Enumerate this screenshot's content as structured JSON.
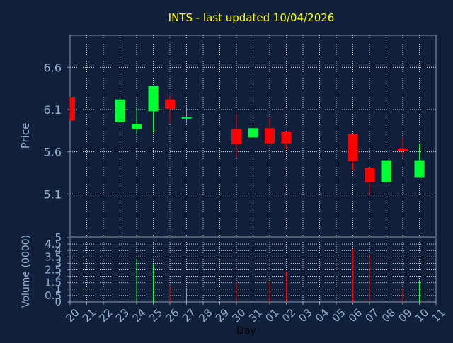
{
  "colors": {
    "background": "#10203a",
    "axis": "#8a9aaa",
    "grid": "#c8c8c8",
    "title": "#ffff00",
    "label": "#8fb0d0",
    "tick": "#8fb0d0",
    "xlabel": "#000000",
    "up": "#00ff33",
    "down": "#ff0000"
  },
  "chart_data": [
    {
      "type": "candlestick",
      "title": "INTS - last updated 10/04/2026",
      "xlabel": "Day",
      "ylabel": "Price",
      "ylim": [
        4.6,
        6.98
      ],
      "yticks": [
        "6.6",
        "6.1",
        "5.6",
        "5.1"
      ],
      "ytick_values": [
        6.6,
        6.1,
        5.6,
        5.1
      ],
      "categories": [
        "20",
        "21",
        "22",
        "23",
        "24",
        "25",
        "26",
        "27",
        "28",
        "29",
        "30",
        "31",
        "01",
        "02",
        "03",
        "04",
        "05",
        "06",
        "07",
        "08",
        "09",
        "10",
        "11"
      ],
      "grid": true,
      "candles": [
        {
          "day": "20",
          "open": 6.25,
          "high": 6.25,
          "low": 5.97,
          "close": 5.97
        },
        {
          "day": "23",
          "open": 5.95,
          "high": 6.22,
          "low": 5.95,
          "close": 6.22
        },
        {
          "day": "24",
          "open": 5.87,
          "high": 6.12,
          "low": 5.82,
          "close": 5.93
        },
        {
          "day": "25",
          "open": 6.08,
          "high": 6.38,
          "low": 5.83,
          "close": 6.38
        },
        {
          "day": "26",
          "open": 6.22,
          "high": 6.26,
          "low": 5.93,
          "close": 6.11
        },
        {
          "day": "27",
          "open": 6.01,
          "high": 6.15,
          "low": 5.95,
          "close": 6.01
        },
        {
          "day": "30",
          "open": 5.87,
          "high": 6.05,
          "low": 5.54,
          "close": 5.69
        },
        {
          "day": "31",
          "open": 5.77,
          "high": 5.96,
          "low": 5.59,
          "close": 5.88
        },
        {
          "day": "01",
          "open": 5.88,
          "high": 6.0,
          "low": 5.68,
          "close": 5.7
        },
        {
          "day": "02",
          "open": 5.84,
          "high": 5.84,
          "low": 5.63,
          "close": 5.7
        },
        {
          "day": "06",
          "open": 5.81,
          "high": 5.81,
          "low": 5.38,
          "close": 5.49
        },
        {
          "day": "07",
          "open": 5.41,
          "high": 5.41,
          "low": 5.08,
          "close": 5.24
        },
        {
          "day": "08",
          "open": 5.24,
          "high": 5.5,
          "low": 5.1,
          "close": 5.5
        },
        {
          "day": "09",
          "open": 5.64,
          "high": 5.77,
          "low": 5.54,
          "close": 5.61
        },
        {
          "day": "10",
          "open": 5.3,
          "high": 5.7,
          "low": 5.3,
          "close": 5.5
        }
      ]
    },
    {
      "type": "bar",
      "ylabel": "Volume (0000)",
      "ylim": [
        0,
        5
      ],
      "yticks": [
        "5",
        "4.5",
        "4",
        "3.5",
        "3",
        "2.5",
        "2",
        "1.5",
        "1",
        "0.5",
        "0"
      ],
      "ytick_values": [
        5,
        4.5,
        4,
        3.5,
        3,
        2.5,
        2,
        1.5,
        1,
        0.5,
        0
      ],
      "categories": [
        "20",
        "21",
        "22",
        "23",
        "24",
        "25",
        "26",
        "27",
        "28",
        "29",
        "30",
        "31",
        "01",
        "02",
        "03",
        "04",
        "05",
        "06",
        "07",
        "08",
        "09",
        "10",
        "11"
      ],
      "bars": [
        {
          "day": "23",
          "value": 1.9,
          "direction": "up"
        },
        {
          "day": "24",
          "value": 3.3,
          "direction": "up"
        },
        {
          "day": "25",
          "value": 2.9,
          "direction": "up"
        },
        {
          "day": "26",
          "value": 1.3,
          "direction": "down"
        },
        {
          "day": "27",
          "value": 1.1,
          "direction": "up"
        },
        {
          "day": "30",
          "value": 1.5,
          "direction": "down"
        },
        {
          "day": "31",
          "value": 2.1,
          "direction": "up"
        },
        {
          "day": "01",
          "value": 1.6,
          "direction": "down"
        },
        {
          "day": "02",
          "value": 2.4,
          "direction": "down"
        },
        {
          "day": "06",
          "value": 4.1,
          "direction": "down"
        },
        {
          "day": "07",
          "value": 3.7,
          "direction": "down"
        },
        {
          "day": "08",
          "value": 3.6,
          "direction": "up"
        },
        {
          "day": "09",
          "value": 1.0,
          "direction": "down"
        },
        {
          "day": "10",
          "value": 1.6,
          "direction": "up"
        }
      ]
    }
  ]
}
